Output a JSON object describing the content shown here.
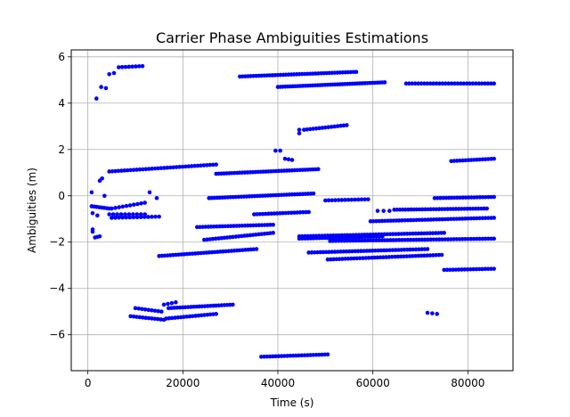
{
  "chart_data": {
    "type": "scatter",
    "title": "Carrier Phase Ambiguities Estimations",
    "xlabel": "Time (s)",
    "ylabel": "Ambiguities (m)",
    "xlim": [
      -3500,
      89500
    ],
    "ylim": [
      -7.55,
      6.3
    ],
    "xticks": [
      0,
      20000,
      40000,
      60000,
      80000
    ],
    "xtick_labels": [
      "0",
      "20000",
      "40000",
      "60000",
      "80000"
    ],
    "yticks": [
      -6,
      -4,
      -2,
      0,
      2,
      4,
      6
    ],
    "ytick_labels": [
      "−6",
      "−4",
      "−2",
      "0",
      "2",
      "4",
      "6"
    ],
    "grid": true,
    "marker_color": "#0000ff",
    "segments": [
      {
        "x0": 1800,
        "x1": 1800,
        "y0": 4.2,
        "y1": 4.2,
        "n": 1
      },
      {
        "x0": 2800,
        "x1": 3800,
        "y0": 4.7,
        "y1": 4.65,
        "n": 2
      },
      {
        "x0": 4500,
        "x1": 5500,
        "y0": 5.25,
        "y1": 5.3,
        "n": 2
      },
      {
        "x0": 6500,
        "x1": 11500,
        "y0": 5.55,
        "y1": 5.6,
        "n": 8
      },
      {
        "x0": 32000,
        "x1": 56500,
        "y0": 5.15,
        "y1": 5.35,
        "n": 44
      },
      {
        "x0": 40000,
        "x1": 62500,
        "y0": 4.7,
        "y1": 4.9,
        "n": 44
      },
      {
        "x0": 67000,
        "x1": 85500,
        "y0": 4.85,
        "y1": 4.85,
        "n": 30
      },
      {
        "x0": 44500,
        "x1": 44500,
        "y0": 2.7,
        "y1": 2.85,
        "n": 2
      },
      {
        "x0": 45500,
        "x1": 54500,
        "y0": 2.85,
        "y1": 3.05,
        "n": 15
      },
      {
        "x0": 39500,
        "x1": 40500,
        "y0": 1.95,
        "y1": 1.95,
        "n": 2
      },
      {
        "x0": 41500,
        "x1": 43000,
        "y0": 1.6,
        "y1": 1.55,
        "n": 3
      },
      {
        "x0": 76500,
        "x1": 85500,
        "y0": 1.5,
        "y1": 1.6,
        "n": 16
      },
      {
        "x0": 4500,
        "x1": 27000,
        "y0": 1.05,
        "y1": 1.35,
        "n": 36
      },
      {
        "x0": 27000,
        "x1": 48500,
        "y0": 0.95,
        "y1": 1.15,
        "n": 40
      },
      {
        "x0": 2500,
        "x1": 3000,
        "y0": 0.65,
        "y1": 0.75,
        "n": 2
      },
      {
        "x0": 13000,
        "x1": 13000,
        "y0": 0.15,
        "y1": 0.15,
        "n": 1
      },
      {
        "x0": 14500,
        "x1": 14500,
        "y0": -0.1,
        "y1": -0.1,
        "n": 1
      },
      {
        "x0": 25500,
        "x1": 47500,
        "y0": -0.1,
        "y1": 0.1,
        "n": 40
      },
      {
        "x0": 50000,
        "x1": 59000,
        "y0": -0.2,
        "y1": -0.15,
        "n": 14
      },
      {
        "x0": 73000,
        "x1": 85500,
        "y0": -0.1,
        "y1": -0.05,
        "n": 22
      },
      {
        "x0": 800,
        "x1": 800,
        "y0": 0.15,
        "y1": 0.15,
        "n": 1
      },
      {
        "x0": 3500,
        "x1": 3500,
        "y0": 0.0,
        "y1": 0.0,
        "n": 1
      },
      {
        "x0": 800,
        "x1": 4500,
        "y0": -0.45,
        "y1": -0.55,
        "n": 8
      },
      {
        "x0": 5000,
        "x1": 12000,
        "y0": -0.55,
        "y1": -0.3,
        "n": 10
      },
      {
        "x0": 1000,
        "x1": 2000,
        "y0": -0.75,
        "y1": -0.85,
        "n": 2
      },
      {
        "x0": 5000,
        "x1": 15000,
        "y0": -0.95,
        "y1": -0.9,
        "n": 14
      },
      {
        "x0": 4500,
        "x1": 12000,
        "y0": -0.8,
        "y1": -0.8,
        "n": 10
      },
      {
        "x0": 35000,
        "x1": 46500,
        "y0": -0.8,
        "y1": -0.7,
        "n": 20
      },
      {
        "x0": 61000,
        "x1": 63500,
        "y0": -0.65,
        "y1": -0.65,
        "n": 3
      },
      {
        "x0": 64500,
        "x1": 84000,
        "y0": -0.6,
        "y1": -0.55,
        "n": 34
      },
      {
        "x0": 59500,
        "x1": 85500,
        "y0": -1.1,
        "y1": -0.95,
        "n": 44
      },
      {
        "x0": 1000,
        "x1": 1000,
        "y0": -1.45,
        "y1": -1.55,
        "n": 2
      },
      {
        "x0": 1500,
        "x1": 2500,
        "y0": -1.8,
        "y1": -1.75,
        "n": 3
      },
      {
        "x0": 23000,
        "x1": 39000,
        "y0": -1.35,
        "y1": -1.25,
        "n": 28
      },
      {
        "x0": 24500,
        "x1": 39000,
        "y0": -1.9,
        "y1": -1.6,
        "n": 25
      },
      {
        "x0": 44500,
        "x1": 75000,
        "y0": -1.75,
        "y1": -1.6,
        "n": 52
      },
      {
        "x0": 44500,
        "x1": 62000,
        "y0": -1.85,
        "y1": -1.75,
        "n": 30
      },
      {
        "x0": 51000,
        "x1": 85500,
        "y0": -1.95,
        "y1": -1.85,
        "n": 58
      },
      {
        "x0": 15000,
        "x1": 35500,
        "y0": -2.6,
        "y1": -2.3,
        "n": 36
      },
      {
        "x0": 46500,
        "x1": 71500,
        "y0": -2.45,
        "y1": -2.3,
        "n": 42
      },
      {
        "x0": 50500,
        "x1": 74500,
        "y0": -2.75,
        "y1": -2.55,
        "n": 40
      },
      {
        "x0": 75000,
        "x1": 85500,
        "y0": -3.2,
        "y1": -3.15,
        "n": 18
      },
      {
        "x0": 10000,
        "x1": 15500,
        "y0": -4.85,
        "y1": -5.0,
        "n": 9
      },
      {
        "x0": 16000,
        "x1": 18500,
        "y0": -4.7,
        "y1": -4.6,
        "n": 4
      },
      {
        "x0": 17000,
        "x1": 30500,
        "y0": -4.85,
        "y1": -4.7,
        "n": 24
      },
      {
        "x0": 9000,
        "x1": 16000,
        "y0": -5.2,
        "y1": -5.35,
        "n": 12
      },
      {
        "x0": 16500,
        "x1": 27000,
        "y0": -5.3,
        "y1": -5.1,
        "n": 18
      },
      {
        "x0": 71500,
        "x1": 73500,
        "y0": -5.05,
        "y1": -5.1,
        "n": 3
      },
      {
        "x0": 36500,
        "x1": 50500,
        "y0": -6.95,
        "y1": -6.85,
        "n": 24
      }
    ]
  }
}
